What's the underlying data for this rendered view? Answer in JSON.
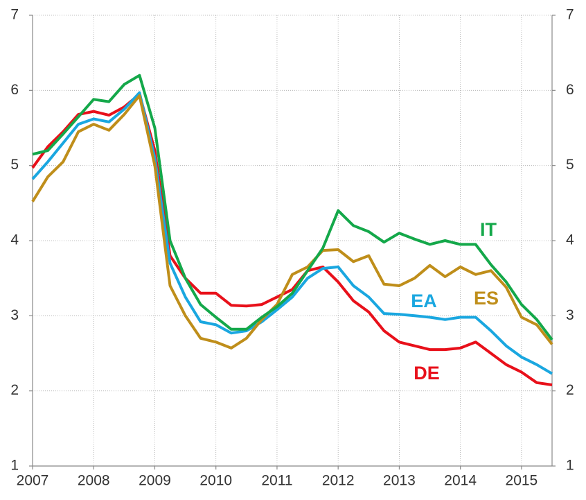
{
  "chart_data": {
    "type": "line",
    "xlim": [
      2007,
      2015.5
    ],
    "xticks": [
      2007,
      2008,
      2009,
      2010,
      2011,
      2012,
      2013,
      2014,
      2015
    ],
    "ylim": [
      1,
      7
    ],
    "yticks": [
      1,
      2,
      3,
      4,
      5,
      6,
      7
    ],
    "y2lim": [
      1,
      7
    ],
    "y2ticks": [
      1,
      2,
      3,
      4,
      5,
      6,
      7
    ],
    "grid": true,
    "x": [
      2007,
      2007.25,
      2007.5,
      2007.75,
      2008,
      2008.25,
      2008.5,
      2008.75,
      2009,
      2009.25,
      2009.5,
      2009.75,
      2010,
      2010.25,
      2010.5,
      2010.75,
      2011,
      2011.25,
      2011.5,
      2011.75,
      2012,
      2012.25,
      2012.5,
      2012.75,
      2013,
      2013.25,
      2013.5,
      2013.75,
      2014,
      2014.25,
      2014.5,
      2014.75,
      2015,
      2015.25,
      2015.5
    ],
    "series": [
      {
        "name": "DE",
        "color": "#e8101a",
        "values": [
          4.97,
          5.25,
          5.45,
          5.68,
          5.72,
          5.67,
          5.78,
          5.95,
          5.2,
          3.8,
          3.5,
          3.3,
          3.3,
          3.14,
          3.13,
          3.15,
          3.25,
          3.35,
          3.6,
          3.65,
          3.45,
          3.2,
          3.05,
          2.8,
          2.65,
          2.6,
          2.55,
          2.55,
          2.57,
          2.65,
          2.5,
          2.35,
          2.25,
          2.11,
          2.08
        ]
      },
      {
        "name": "EA",
        "color": "#1aa7e0",
        "values": [
          4.82,
          5.05,
          5.3,
          5.55,
          5.62,
          5.58,
          5.75,
          5.97,
          5.1,
          3.7,
          3.25,
          2.92,
          2.88,
          2.77,
          2.8,
          2.92,
          3.08,
          3.25,
          3.5,
          3.63,
          3.65,
          3.4,
          3.25,
          3.03,
          3.02,
          3.0,
          2.98,
          2.95,
          2.98,
          2.98,
          2.8,
          2.6,
          2.45,
          2.35,
          2.23
        ]
      },
      {
        "name": "ES",
        "color": "#bf8e1a",
        "values": [
          4.52,
          4.85,
          5.05,
          5.45,
          5.55,
          5.47,
          5.68,
          5.93,
          5.0,
          3.4,
          3.0,
          2.7,
          2.65,
          2.57,
          2.7,
          2.95,
          3.15,
          3.55,
          3.65,
          3.87,
          3.88,
          3.72,
          3.8,
          3.42,
          3.4,
          3.5,
          3.67,
          3.52,
          3.65,
          3.55,
          3.6,
          3.38,
          2.98,
          2.88,
          2.62
        ]
      },
      {
        "name": "IT",
        "color": "#14a84a",
        "values": [
          5.15,
          5.2,
          5.42,
          5.65,
          5.88,
          5.85,
          6.08,
          6.2,
          5.5,
          4.0,
          3.5,
          3.15,
          2.98,
          2.82,
          2.82,
          2.98,
          3.12,
          3.3,
          3.6,
          3.9,
          4.4,
          4.2,
          4.12,
          3.98,
          4.1,
          4.02,
          3.95,
          4.0,
          3.95,
          3.95,
          3.68,
          3.45,
          3.15,
          2.95,
          2.68
        ]
      }
    ]
  }
}
